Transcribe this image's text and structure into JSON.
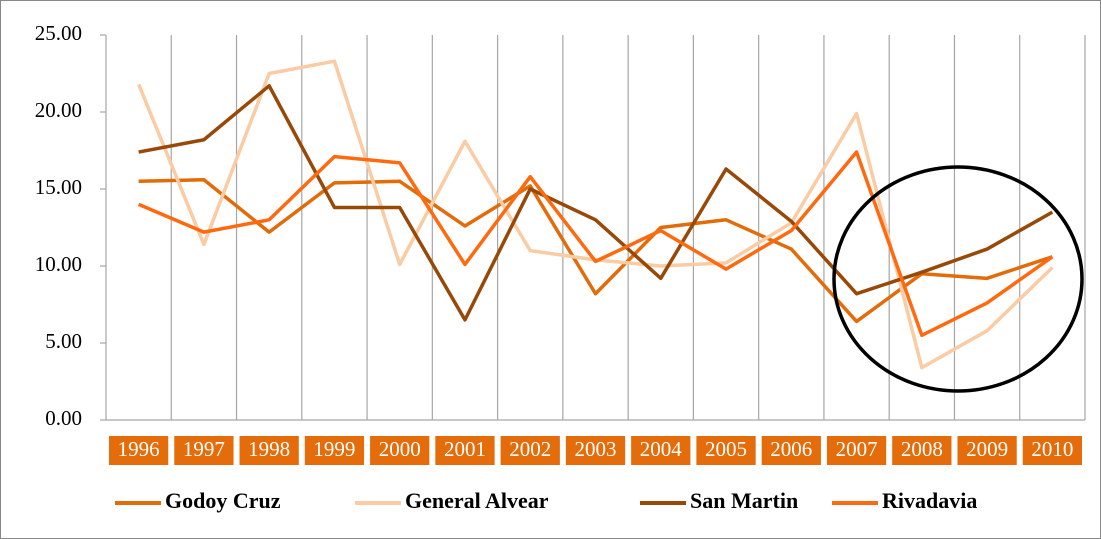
{
  "chart_data": {
    "type": "line",
    "categories": [
      "1996",
      "1997",
      "1998",
      "1999",
      "2000",
      "2001",
      "2002",
      "2003",
      "2004",
      "2005",
      "2006",
      "2007",
      "2008",
      "2009",
      "2010"
    ],
    "series": [
      {
        "name": "Godoy Cruz",
        "color": "#e26b0a",
        "values": [
          15.5,
          15.6,
          12.2,
          15.4,
          15.5,
          12.6,
          15.2,
          8.2,
          12.5,
          13.0,
          11.1,
          6.4,
          9.5,
          9.2,
          10.6
        ]
      },
      {
        "name": "General Alvear",
        "color": "#fbcba3",
        "values": [
          21.8,
          11.4,
          22.5,
          23.3,
          10.1,
          18.1,
          11.0,
          10.4,
          10.0,
          10.2,
          12.8,
          19.9,
          3.4,
          5.8,
          9.9
        ]
      },
      {
        "name": "San Martin",
        "color": "#984807",
        "values": [
          17.4,
          18.2,
          21.7,
          13.8,
          13.8,
          6.5,
          15.0,
          13.0,
          9.2,
          16.3,
          12.9,
          8.2,
          9.6,
          11.1,
          13.5
        ]
      },
      {
        "name": "Rivadavia",
        "color": "#ff6a10",
        "values": [
          14.0,
          12.2,
          13.0,
          17.1,
          16.7,
          10.1,
          15.8,
          10.3,
          12.3,
          9.8,
          12.3,
          17.4,
          5.5,
          7.6,
          10.6
        ]
      }
    ],
    "ylim": [
      0,
      25
    ],
    "yticks": [
      {
        "value": 0,
        "label": "0.00"
      },
      {
        "value": 5,
        "label": "5.00"
      },
      {
        "value": 10,
        "label": "10.00"
      },
      {
        "value": 15,
        "label": "15.00"
      },
      {
        "value": 20,
        "label": "20.00"
      },
      {
        "value": 25,
        "label": "25.00"
      }
    ],
    "category_label_color": "#e46c0a",
    "legend": "bottom"
  }
}
